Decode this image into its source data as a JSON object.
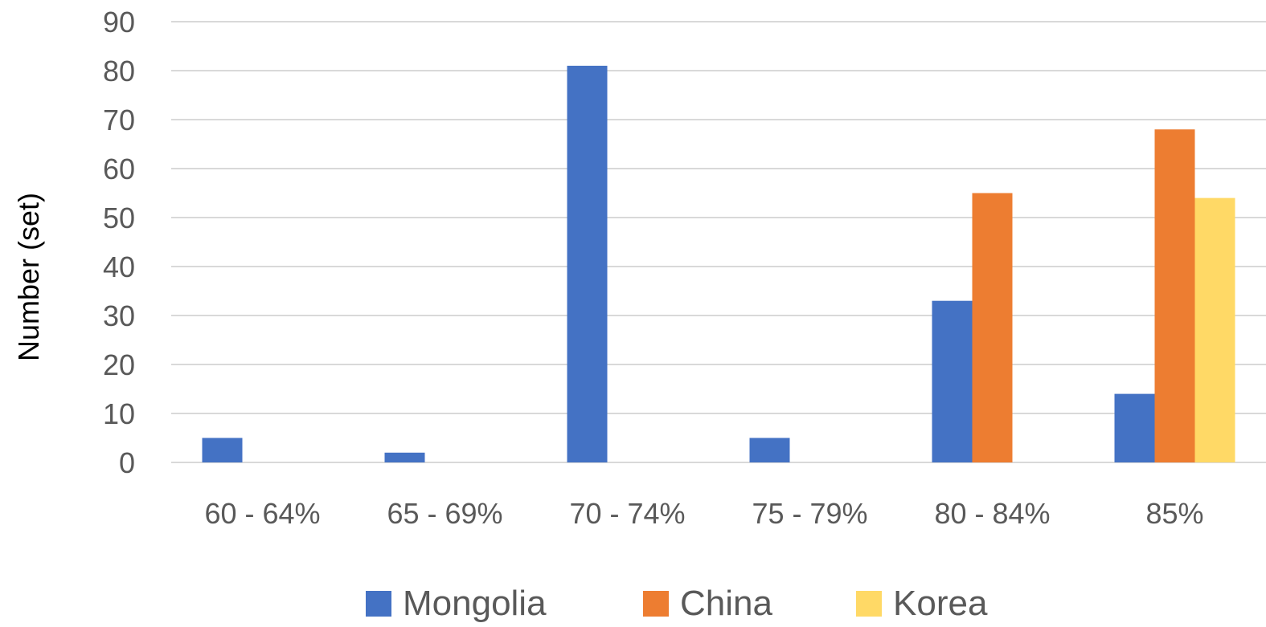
{
  "chart_data": {
    "type": "bar",
    "title": "",
    "xlabel": "",
    "ylabel": "Number (set)",
    "ylim": [
      0,
      90
    ],
    "yticks": [
      0,
      10,
      20,
      30,
      40,
      50,
      60,
      70,
      80,
      90
    ],
    "grid": true,
    "legend_position": "bottom",
    "categories": [
      "60 - 64%",
      "65 - 69%",
      "70 - 74%",
      "75 - 79%",
      "80 - 84%",
      "85%"
    ],
    "series": [
      {
        "name": "Mongolia",
        "color": "#4472C4",
        "values": [
          5,
          2,
          81,
          5,
          33,
          14
        ]
      },
      {
        "name": "China",
        "color": "#ED7D31",
        "values": [
          0,
          0,
          0,
          0,
          55,
          68
        ]
      },
      {
        "name": "Korea",
        "color": "#FFD966",
        "values": [
          0,
          0,
          0,
          0,
          0,
          54
        ]
      }
    ]
  }
}
